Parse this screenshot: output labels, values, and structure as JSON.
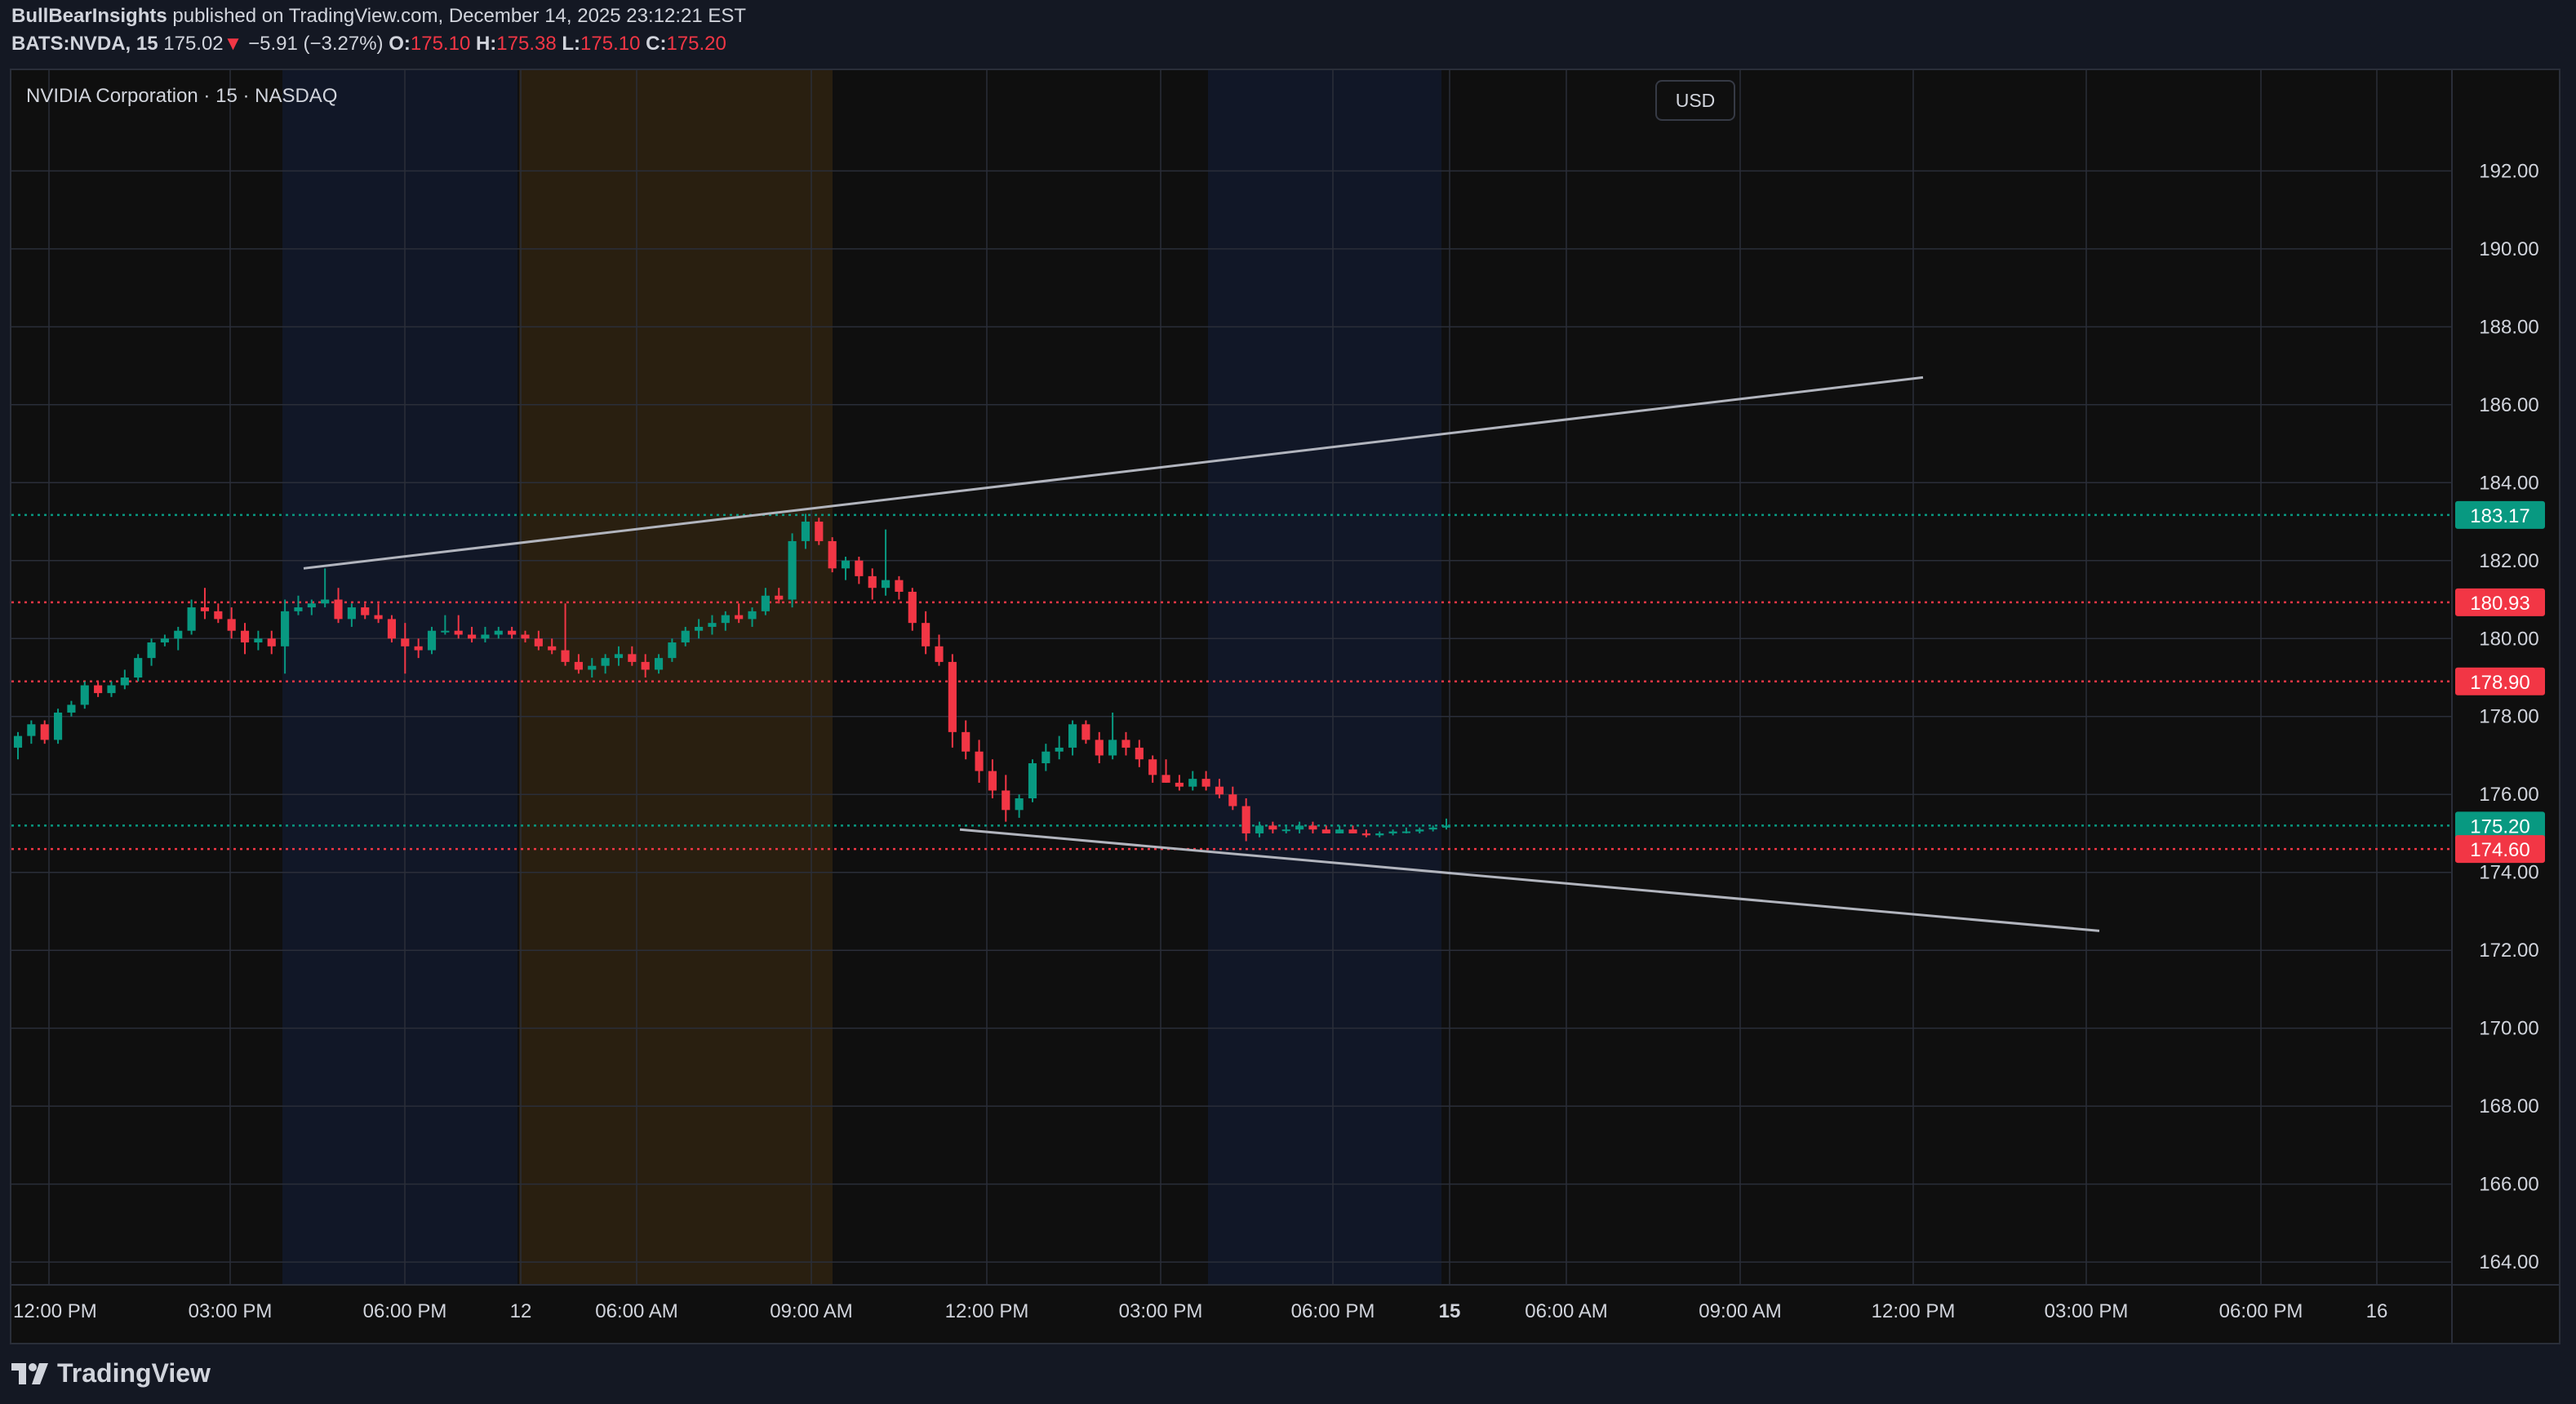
{
  "header": {
    "author": "BullBearInsights",
    "published_text": "published on TradingView.com, December 14, 2025 23:12:21 EST",
    "symbol": "BATS:NVDA, 15",
    "last": "175.02",
    "change_arrow": "▼",
    "change": "−5.91 (−3.27%)",
    "o_label": "O:",
    "o_value": "175.10",
    "h_label": "H:",
    "h_value": "175.38",
    "l_label": "L:",
    "l_value": "175.10",
    "c_label": "C:",
    "c_value": "175.20"
  },
  "legend": "NVIDIA Corporation · 15 · NASDAQ",
  "currency": "USD",
  "footer": {
    "brand": "TradingView"
  },
  "colors": {
    "up": "#089981",
    "down": "#f23645",
    "bg": "#0f0f0f",
    "page": "#141823",
    "grid": "#2a2e39",
    "text": "#d1d4dc",
    "trendline": "#b2b5be",
    "premarket": "#d88c1a",
    "afterhours": "#2962ff"
  },
  "chart_data": {
    "type": "candlestick",
    "y_axis": {
      "range": [
        163.5,
        194.5
      ],
      "ticks": [
        "192.00",
        "190.00",
        "188.00",
        "186.00",
        "184.00",
        "182.00",
        "180.00",
        "178.00",
        "176.00",
        "174.00",
        "172.00",
        "170.00",
        "168.00",
        "166.00",
        "164.00"
      ]
    },
    "x_axis": {
      "ticks": [
        {
          "label": "12:00 PM",
          "bold": false
        },
        {
          "label": "03:00 PM",
          "bold": false
        },
        {
          "label": "06:00 PM",
          "bold": false
        },
        {
          "label": "12",
          "bold": false
        },
        {
          "label": "06:00 AM",
          "bold": false
        },
        {
          "label": "09:00 AM",
          "bold": false
        },
        {
          "label": "12:00 PM",
          "bold": false
        },
        {
          "label": "03:00 PM",
          "bold": false
        },
        {
          "label": "06:00 PM",
          "bold": false
        },
        {
          "label": "15",
          "bold": true
        },
        {
          "label": "06:00 AM",
          "bold": false
        },
        {
          "label": "09:00 AM",
          "bold": false
        },
        {
          "label": "12:00 PM",
          "bold": false
        },
        {
          "label": "03:00 PM",
          "bold": false
        },
        {
          "label": "06:00 PM",
          "bold": false
        },
        {
          "label": "16",
          "bold": false
        }
      ]
    },
    "price_levels": [
      {
        "value": 183.17,
        "label": "183.17",
        "color": "#089981",
        "style": "dotted"
      },
      {
        "value": 180.93,
        "label": "180.93",
        "color": "#f23645",
        "style": "dotted"
      },
      {
        "value": 178.9,
        "label": "178.90",
        "color": "#f23645",
        "style": "dotted"
      },
      {
        "value": 175.2,
        "label": "175.20",
        "color": "#089981",
        "style": "dotted"
      },
      {
        "value": 174.6,
        "label": "174.60",
        "color": "#f23645",
        "style": "dotted"
      }
    ],
    "trendlines": [
      {
        "from": 181.8,
        "to": 186.7,
        "name": "upper"
      },
      {
        "from": 175.1,
        "to": 172.5,
        "name": "lower"
      }
    ],
    "candles": [
      [
        177.2,
        177.6,
        176.9,
        177.5
      ],
      [
        177.5,
        177.9,
        177.3,
        177.8
      ],
      [
        177.8,
        177.9,
        177.3,
        177.4
      ],
      [
        177.4,
        178.2,
        177.3,
        178.1
      ],
      [
        178.1,
        178.4,
        178.0,
        178.3
      ],
      [
        178.3,
        178.9,
        178.2,
        178.8
      ],
      [
        178.8,
        178.9,
        178.5,
        178.6
      ],
      [
        178.6,
        178.9,
        178.5,
        178.8
      ],
      [
        178.8,
        179.2,
        178.7,
        179.0
      ],
      [
        179.0,
        179.6,
        178.9,
        179.5
      ],
      [
        179.5,
        180.0,
        179.3,
        179.9
      ],
      [
        179.9,
        180.1,
        179.8,
        180.0
      ],
      [
        180.0,
        180.3,
        179.7,
        180.2
      ],
      [
        180.2,
        181.0,
        180.1,
        180.8
      ],
      [
        180.8,
        181.3,
        180.5,
        180.7
      ],
      [
        180.7,
        180.9,
        180.4,
        180.5
      ],
      [
        180.5,
        180.8,
        180.0,
        180.2
      ],
      [
        180.2,
        180.4,
        179.6,
        179.9
      ],
      [
        179.9,
        180.2,
        179.7,
        180.0
      ],
      [
        180.0,
        180.2,
        179.6,
        179.8
      ],
      [
        179.8,
        181.0,
        179.1,
        180.7
      ],
      [
        180.7,
        181.1,
        180.6,
        180.8
      ],
      [
        180.8,
        181.0,
        180.6,
        180.9
      ],
      [
        180.9,
        181.8,
        180.8,
        181.0
      ],
      [
        181.0,
        181.3,
        180.4,
        180.5
      ],
      [
        180.5,
        180.9,
        180.3,
        180.8
      ],
      [
        180.8,
        180.9,
        180.5,
        180.6
      ],
      [
        180.6,
        180.9,
        180.4,
        180.5
      ],
      [
        180.5,
        180.6,
        179.9,
        180.0
      ],
      [
        180.0,
        180.4,
        179.1,
        179.8
      ],
      [
        179.8,
        180.0,
        179.5,
        179.7
      ],
      [
        179.7,
        180.3,
        179.6,
        180.2
      ],
      [
        180.2,
        180.6,
        180.1,
        180.2
      ],
      [
        180.2,
        180.6,
        180.0,
        180.1
      ],
      [
        180.1,
        180.3,
        179.9,
        180.0
      ],
      [
        180.0,
        180.3,
        179.9,
        180.1
      ],
      [
        180.1,
        180.3,
        180.0,
        180.2
      ],
      [
        180.2,
        180.3,
        180.0,
        180.1
      ],
      [
        180.1,
        180.2,
        179.9,
        180.0
      ],
      [
        180.0,
        180.2,
        179.7,
        179.8
      ],
      [
        179.8,
        180.0,
        179.6,
        179.7
      ],
      [
        179.7,
        180.9,
        179.3,
        179.4
      ],
      [
        179.4,
        179.6,
        179.1,
        179.2
      ],
      [
        179.2,
        179.5,
        179.0,
        179.3
      ],
      [
        179.3,
        179.6,
        179.1,
        179.5
      ],
      [
        179.5,
        179.8,
        179.3,
        179.6
      ],
      [
        179.6,
        179.8,
        179.3,
        179.4
      ],
      [
        179.4,
        179.6,
        179.0,
        179.2
      ],
      [
        179.2,
        179.6,
        179.1,
        179.5
      ],
      [
        179.5,
        180.0,
        179.4,
        179.9
      ],
      [
        179.9,
        180.3,
        179.8,
        180.2
      ],
      [
        180.2,
        180.5,
        180.0,
        180.3
      ],
      [
        180.3,
        180.6,
        180.1,
        180.4
      ],
      [
        180.4,
        180.7,
        180.2,
        180.6
      ],
      [
        180.6,
        180.9,
        180.4,
        180.5
      ],
      [
        180.5,
        180.8,
        180.3,
        180.7
      ],
      [
        180.7,
        181.3,
        180.6,
        181.1
      ],
      [
        181.1,
        181.3,
        180.9,
        181.0
      ],
      [
        181.0,
        182.7,
        180.8,
        182.5
      ],
      [
        182.5,
        183.2,
        182.3,
        183.0
      ],
      [
        183.0,
        183.1,
        182.4,
        182.5
      ],
      [
        182.5,
        182.6,
        181.7,
        181.8
      ],
      [
        181.8,
        182.1,
        181.5,
        182.0
      ],
      [
        182.0,
        182.1,
        181.4,
        181.6
      ],
      [
        181.6,
        181.8,
        181.0,
        181.3
      ],
      [
        181.3,
        182.8,
        181.1,
        181.5
      ],
      [
        181.5,
        181.6,
        181.0,
        181.2
      ],
      [
        181.2,
        181.3,
        180.2,
        180.4
      ],
      [
        180.4,
        180.7,
        179.6,
        179.8
      ],
      [
        179.8,
        180.1,
        179.3,
        179.4
      ],
      [
        179.4,
        179.6,
        177.2,
        177.6
      ],
      [
        177.6,
        177.9,
        176.9,
        177.1
      ],
      [
        177.1,
        177.4,
        176.3,
        176.6
      ],
      [
        176.6,
        176.9,
        175.9,
        176.1
      ],
      [
        176.1,
        176.5,
        175.3,
        175.6
      ],
      [
        175.6,
        176.0,
        175.4,
        175.9
      ],
      [
        175.9,
        176.9,
        175.8,
        176.8
      ],
      [
        176.8,
        177.3,
        176.6,
        177.1
      ],
      [
        177.1,
        177.5,
        176.9,
        177.2
      ],
      [
        177.2,
        177.9,
        177.0,
        177.8
      ],
      [
        177.8,
        177.9,
        177.3,
        177.4
      ],
      [
        177.4,
        177.6,
        176.8,
        177.0
      ],
      [
        177.0,
        178.1,
        176.9,
        177.4
      ],
      [
        177.4,
        177.6,
        177.0,
        177.2
      ],
      [
        177.2,
        177.4,
        176.7,
        176.9
      ],
      [
        176.9,
        177.0,
        176.3,
        176.5
      ],
      [
        176.5,
        176.9,
        176.3,
        176.3
      ],
      [
        176.3,
        176.5,
        176.1,
        176.2
      ],
      [
        176.2,
        176.6,
        176.1,
        176.4
      ],
      [
        176.4,
        176.6,
        176.1,
        176.2
      ],
      [
        176.2,
        176.4,
        175.9,
        176.0
      ],
      [
        176.0,
        176.2,
        175.6,
        175.7
      ],
      [
        175.7,
        175.9,
        174.8,
        175.0
      ],
      [
        175.0,
        175.3,
        174.9,
        175.2
      ],
      [
        175.2,
        175.3,
        175.0,
        175.1
      ],
      [
        175.1,
        175.2,
        175.0,
        175.1
      ],
      [
        175.1,
        175.3,
        175.0,
        175.2
      ],
      [
        175.2,
        175.3,
        175.0,
        175.1
      ],
      [
        175.1,
        175.2,
        175.0,
        175.0
      ],
      [
        175.0,
        175.2,
        175.0,
        175.1
      ],
      [
        175.1,
        175.2,
        175.0,
        175.0
      ],
      [
        175.0,
        175.1,
        174.9,
        174.95
      ],
      [
        174.95,
        175.05,
        174.9,
        175.0
      ],
      [
        175.0,
        175.1,
        174.95,
        175.05
      ],
      [
        175.05,
        175.15,
        175.0,
        175.05
      ],
      [
        175.05,
        175.15,
        175.0,
        175.1
      ],
      [
        175.1,
        175.2,
        175.05,
        175.15
      ],
      [
        175.15,
        175.38,
        175.1,
        175.2
      ]
    ]
  }
}
